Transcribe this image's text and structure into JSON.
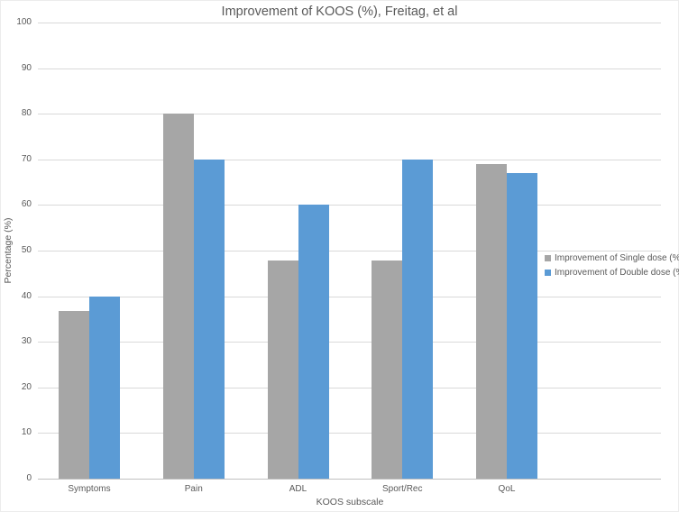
{
  "chart_data": {
    "type": "bar",
    "title": "Improvement of KOOS (%), Freitag, et al",
    "xlabel": "KOOS subscale",
    "ylabel": "Percentage (%)",
    "categories": [
      "Symptoms",
      "Pain",
      "ADL",
      "Sport/Rec",
      "QoL"
    ],
    "series": [
      {
        "name": "Improvement of Single dose (%)",
        "color": "#a6a6a6",
        "values": [
          36.7,
          80,
          47.8,
          47.8,
          68.9
        ]
      },
      {
        "name": "Improvement of Double dose (%)",
        "color": "#5b9bd5",
        "values": [
          40,
          70,
          60,
          70,
          67
        ]
      }
    ],
    "ylim": [
      0,
      100
    ],
    "ytick_step": 10,
    "grid": true,
    "legend_position": "right-overlay"
  },
  "colors": {
    "text": "#595959",
    "gridline": "#d9d9d9",
    "axis_line": "#bfbfbf",
    "background": "#ffffff"
  }
}
